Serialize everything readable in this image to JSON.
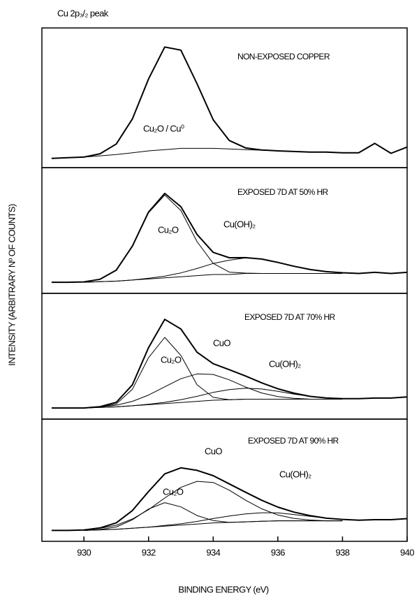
{
  "chart_data": [
    {
      "type": "line",
      "title": "Cu 2p₃/₂ peak",
      "ylabel": "INTENSITY (ARBITRARY Nº OF COUNTS)",
      "annotations": [
        "NON-EXPOSED COPPER",
        "Cu₂O / Cu⁰"
      ],
      "xlim": [
        928.7,
        940
      ],
      "ylim": [
        0,
        100
      ],
      "x": [
        929,
        929.5,
        930,
        930.5,
        931,
        931.5,
        932,
        932.5,
        933,
        933.5,
        934,
        934.5,
        935,
        935.5,
        936,
        936.5,
        937,
        937.5,
        938,
        938.5,
        939,
        939.5,
        940
      ],
      "series": [
        {
          "color": "#000000",
          "values": [
            3,
            3.5,
            4,
            6.7,
            14.5,
            34.7,
            66.8,
            92.5,
            90,
            62.9,
            34,
            17.3,
            11.4,
            9.7,
            9,
            8.5,
            8,
            8,
            7.5,
            7.5,
            15,
            7,
            12
          ]
        },
        {
          "color": "#000000",
          "values": [
            3,
            3.5,
            4,
            5,
            6,
            7.5,
            9,
            10,
            11,
            11,
            11,
            10.5,
            10,
            9.5,
            9,
            8.5,
            8,
            8,
            7.5,
            null,
            null,
            null,
            null
          ]
        }
      ]
    },
    {
      "type": "line",
      "annotations": [
        "EXPOSED 7D AT 50% HR",
        "Cu₂O",
        "Cu(OH)₂"
      ],
      "xlim": [
        928.7,
        940
      ],
      "ylim": [
        0,
        100
      ],
      "x": [
        929,
        929.5,
        930,
        930.5,
        931,
        931.5,
        932,
        932.5,
        933,
        933.5,
        934,
        934.5,
        935,
        935.5,
        936,
        936.5,
        937,
        937.5,
        938,
        938.5,
        939,
        939.5,
        940
      ],
      "series": [
        {
          "color": "#000000",
          "values": [
            5,
            5,
            5.3,
            7.7,
            16,
            37.8,
            68.6,
            85.5,
            73.5,
            48.3,
            32.1,
            27.2,
            27.3,
            26,
            23,
            19.5,
            16.5,
            14.6,
            13.6,
            13,
            14,
            13,
            14
          ]
        },
        {
          "color": "#000000",
          "values": [
            null,
            null,
            5.3,
            7.7,
            16,
            37.8,
            68,
            84,
            70,
            41.8,
            22.1,
            14.2,
            13.3,
            13,
            13,
            13,
            13,
            13,
            13,
            null,
            null,
            null,
            null
          ]
        },
        {
          "color": "#000000",
          "values": [
            null,
            null,
            5,
            5.5,
            6,
            7,
            8.6,
            10.5,
            13.5,
            17.5,
            22,
            25,
            27,
            26,
            23,
            19.5,
            16.5,
            14.6,
            13.6,
            null,
            null,
            null,
            null
          ]
        },
        {
          "color": "#000000",
          "values": [
            null,
            null,
            5,
            5.5,
            6,
            7,
            8,
            9,
            10,
            11,
            12,
            12,
            13,
            13,
            13,
            13,
            13,
            13,
            13,
            null,
            null,
            null,
            null
          ]
        }
      ]
    },
    {
      "type": "line",
      "annotations": [
        "EXPOSED 7D AT 70% HR",
        "CuO",
        "Cu₂O",
        "Cu(OH)₂"
      ],
      "xlim": [
        928.7,
        940
      ],
      "ylim": [
        0,
        100
      ],
      "x": [
        929,
        929.5,
        930,
        930.5,
        931,
        931.5,
        932,
        932.5,
        933,
        933.5,
        934,
        934.5,
        935,
        935.5,
        936,
        936.5,
        937,
        937.5,
        938,
        938.5,
        939,
        939.5,
        940
      ],
      "series": [
        {
          "color": "#000000",
          "values": [
            5,
            5,
            5,
            6.2,
            10.1,
            26,
            59.7,
            85.3,
            76.6,
            55.5,
            45.1,
            39.7,
            34,
            27.8,
            22.4,
            18.4,
            15.5,
            14.1,
            13.4,
            13.5,
            14,
            14,
            15
          ]
        },
        {
          "color": "#000000",
          "values": [
            null,
            null,
            5,
            5.7,
            8.6,
            22,
            50.6,
            69,
            52.6,
            26,
            14.6,
            12.5,
            13,
            13,
            13,
            13,
            13,
            13,
            13,
            null,
            null,
            null,
            null
          ]
        },
        {
          "color": "#000000",
          "values": [
            null,
            null,
            5,
            6,
            7.5,
            11,
            16.7,
            24.2,
            31.5,
            35.9,
            35.4,
            30.5,
            24,
            18.6,
            15.3,
            13.8,
            13,
            13,
            13,
            null,
            null,
            null,
            null
          ]
        },
        {
          "color": "#000000",
          "values": [
            null,
            null,
            5,
            5.5,
            6,
            7,
            8.4,
            10.1,
            12.5,
            15.6,
            19.1,
            21.7,
            23,
            22.2,
            20.1,
            17.6,
            15.5,
            14.1,
            13.4,
            null,
            null,
            null,
            null
          ]
        },
        {
          "color": "#000000",
          "values": [
            null,
            null,
            5,
            5.5,
            6,
            7,
            8,
            9,
            10,
            11,
            12,
            12.5,
            13,
            13,
            13,
            13,
            13,
            13,
            13,
            null,
            null,
            null,
            null
          ]
        }
      ]
    },
    {
      "type": "line",
      "xlabel": "BINDING ENERGY (eV)",
      "annotations": [
        "EXPOSED 7D AT 90% HR",
        "CuO",
        "Cu(OH)₂",
        "Cu₂O"
      ],
      "xlim": [
        928.7,
        940
      ],
      "ylim": [
        0,
        100
      ],
      "xticks": [
        930,
        932,
        934,
        936,
        938,
        940
      ],
      "x": [
        929,
        929.5,
        930,
        930.5,
        931,
        931.5,
        932,
        932.5,
        933,
        933.5,
        934,
        934.5,
        935,
        935.5,
        936,
        936.5,
        937,
        937.5,
        938,
        938.5,
        939,
        939.5,
        940
      ],
      "series": [
        {
          "color": "#000000",
          "values": [
            5,
            5,
            5.4,
            7.3,
            12,
            23.6,
            41.4,
            57.9,
            63.5,
            61.2,
            56.2,
            48.5,
            40.7,
            33.2,
            26.8,
            22.1,
            18.8,
            16.4,
            15.3,
            14.6,
            15,
            15,
            16
          ]
        },
        {
          "color": "#000000",
          "values": [
            null,
            null,
            5,
            5.9,
            8.2,
            14.9,
            25,
            31,
            27,
            18.9,
            14.2,
            12.5,
            13,
            13.5,
            14,
            14,
            14,
            14,
            14,
            null,
            null,
            null,
            null
          ]
        },
        {
          "color": "#000000",
          "values": [
            null,
            null,
            5.4,
            6.9,
            9.8,
            15.7,
            24.4,
            35.3,
            45.3,
            50.9,
            49.9,
            42.6,
            33.3,
            25.2,
            19.4,
            16.2,
            14.7,
            14,
            14,
            null,
            null,
            null,
            null
          ]
        },
        {
          "color": "#000000",
          "values": [
            null,
            null,
            5,
            5.5,
            6,
            7,
            8,
            9.6,
            11.2,
            13.4,
            16.1,
            18.4,
            20.4,
            21.5,
            21.4,
            19.9,
            18.1,
            16.4,
            15.3,
            null,
            null,
            null,
            null
          ]
        },
        {
          "color": "#000000",
          "values": [
            null,
            null,
            5,
            5.5,
            6,
            7,
            8,
            9,
            10,
            11,
            12,
            12.5,
            13,
            13.5,
            14,
            14,
            14,
            14,
            14,
            null,
            null,
            null,
            null
          ]
        }
      ]
    }
  ]
}
